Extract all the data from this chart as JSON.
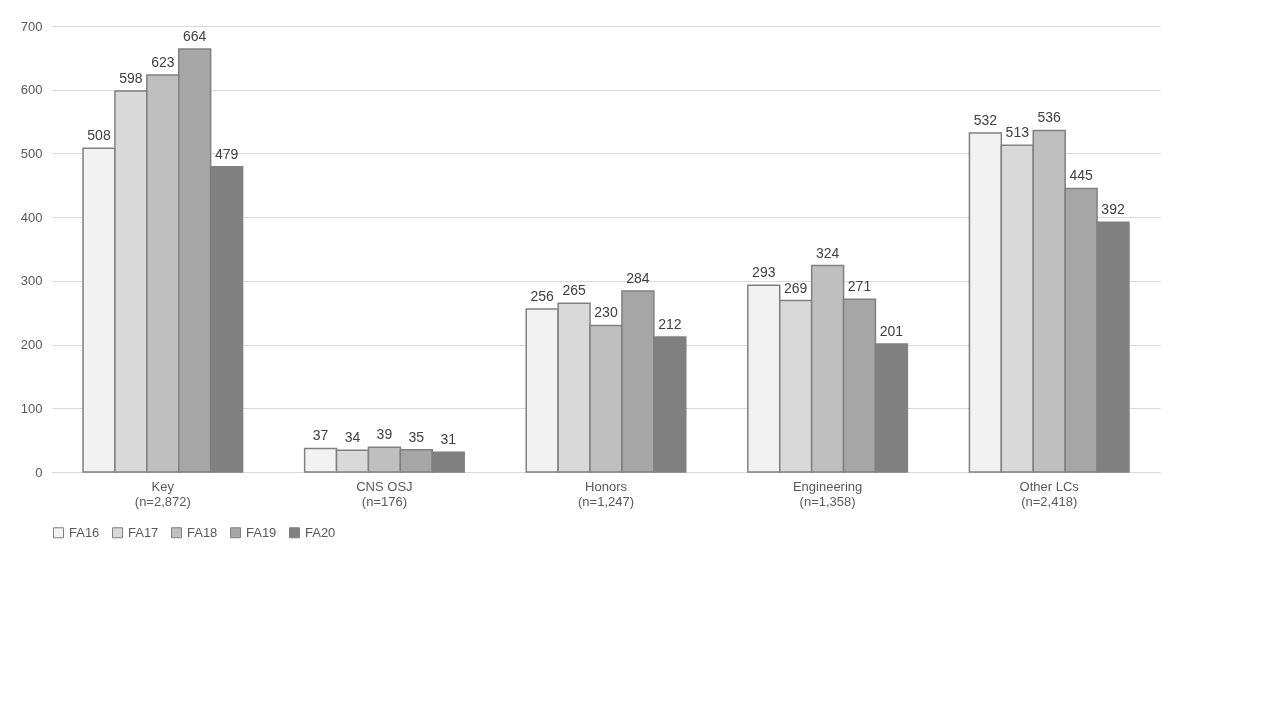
{
  "chart_data": {
    "type": "bar",
    "categories": [
      "Key\n(n=2,872)",
      "CNS OSJ\n(n=176)",
      "Honors\n(n=1,247)",
      "Engineering\n(n=1,358)",
      "Other LCs\n(n=2,418)"
    ],
    "series": [
      {
        "name": "FA16",
        "color": "#f2f2f2",
        "values": [
          508,
          37,
          256,
          293,
          532
        ]
      },
      {
        "name": "FA17",
        "color": "#d9d9d9",
        "values": [
          598,
          34,
          265,
          269,
          513
        ]
      },
      {
        "name": "FA18",
        "color": "#bfbfbf",
        "values": [
          623,
          39,
          230,
          324,
          536
        ]
      },
      {
        "name": "FA19",
        "color": "#a6a6a6",
        "values": [
          664,
          35,
          284,
          271,
          445
        ]
      },
      {
        "name": "FA20",
        "color": "#808080",
        "values": [
          479,
          31,
          212,
          201,
          392
        ]
      }
    ],
    "ylim": [
      0,
      700
    ],
    "yticks": [
      0,
      100,
      200,
      300,
      400,
      500,
      600,
      700
    ],
    "grid": "y",
    "legend": "bottom",
    "data_labels": true
  }
}
